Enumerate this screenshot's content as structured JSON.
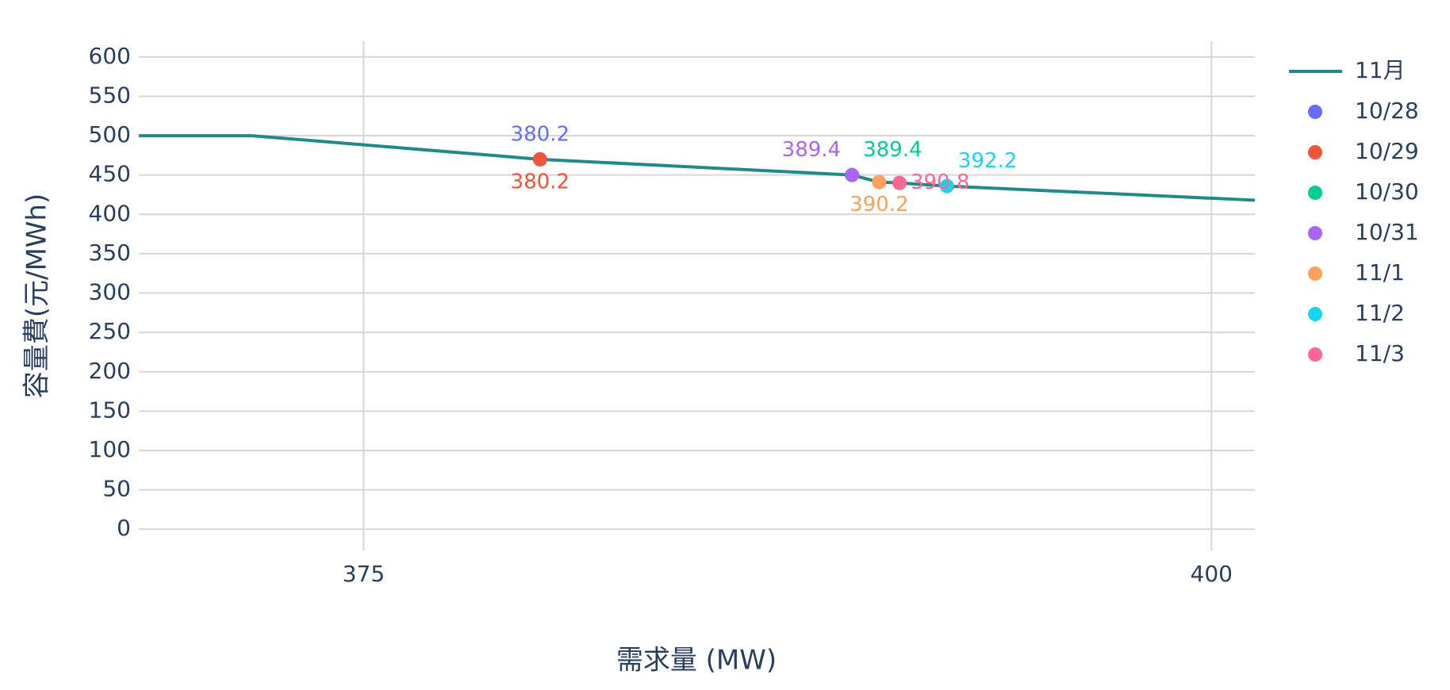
{
  "chart_data": {
    "type": "scatter",
    "x_label": "需求量 (MW)",
    "y_label": "容量費(元/MWh)",
    "xlim": [
      368.37,
      401.28
    ],
    "ylim": [
      -27,
      620
    ],
    "xticks": [
      375,
      400
    ],
    "yticks": [
      0,
      50,
      100,
      150,
      200,
      250,
      300,
      350,
      400,
      450,
      500,
      550,
      600
    ],
    "grid": true,
    "legend_position": "right",
    "series": [
      {
        "name": "11月",
        "mode": "lines",
        "color": "#1f8a86",
        "x": [
          368.37,
          371.7,
          380.2,
          389.4,
          390.2,
          390.8,
          392.2,
          401.28
        ],
        "values": [
          500,
          500,
          470,
          450,
          441,
          440,
          436,
          418
        ]
      },
      {
        "name": "10/28",
        "mode": "markers+text",
        "color": "#636efa",
        "x": [
          380.2
        ],
        "values": [
          470
        ],
        "text_position": "top center"
      },
      {
        "name": "10/29",
        "mode": "markers+text",
        "color": "#ef553b",
        "x": [
          380.2
        ],
        "values": [
          470
        ],
        "text_position": "bottom center"
      },
      {
        "name": "10/30",
        "mode": "markers+text",
        "color": "#00cc96",
        "x": [
          389.4
        ],
        "values": [
          450
        ],
        "text_position": "top right"
      },
      {
        "name": "10/31",
        "mode": "markers+text",
        "color": "#ab63fa",
        "x": [
          389.4
        ],
        "values": [
          450
        ],
        "text_position": "top left"
      },
      {
        "name": "11/1",
        "mode": "markers+text",
        "color": "#ffa15a",
        "x": [
          390.2
        ],
        "values": [
          441
        ],
        "text_position": "bottom center"
      },
      {
        "name": "11/2",
        "mode": "markers+text",
        "color": "#19d3f3",
        "x": [
          392.2
        ],
        "values": [
          436
        ],
        "text_position": "top right"
      },
      {
        "name": "11/3",
        "mode": "markers+text",
        "color": "#ff6692",
        "x": [
          390.8
        ],
        "values": [
          440
        ],
        "text_position": "middle right"
      }
    ]
  }
}
